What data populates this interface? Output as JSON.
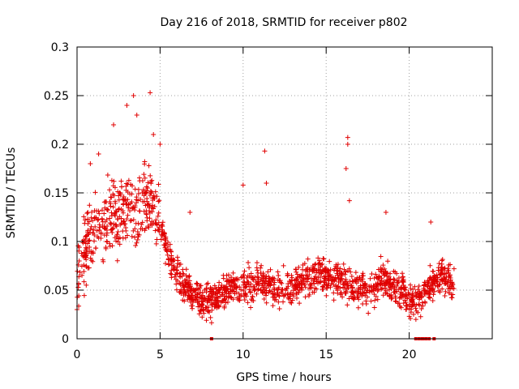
{
  "chart_data": {
    "type": "scatter",
    "title": "Day 216 of 2018, SRMTID for receiver p802",
    "xlabel": "GPS time / hours",
    "ylabel": "SRMTID / TECUs",
    "xlim": [
      0,
      25
    ],
    "ylim": [
      0,
      0.3
    ],
    "x_ticks": [
      0,
      5,
      10,
      15,
      20
    ],
    "x_tick_labels": [
      "0",
      "5",
      "10",
      "15",
      "20"
    ],
    "y_ticks": [
      0,
      0.05,
      0.1,
      0.15,
      0.2,
      0.25,
      0.3
    ],
    "y_tick_labels": [
      "0",
      "0.05",
      "0.1",
      "0.15",
      "0.2",
      "0.25",
      "0.3"
    ],
    "grid": true,
    "marker": "plus",
    "color": "#e00000",
    "trend": [
      [
        0.0,
        0.06
      ],
      [
        0.5,
        0.09
      ],
      [
        1.0,
        0.11
      ],
      [
        1.5,
        0.12
      ],
      [
        2.0,
        0.125
      ],
      [
        2.5,
        0.13
      ],
      [
        3.0,
        0.135
      ],
      [
        3.5,
        0.135
      ],
      [
        4.0,
        0.14
      ],
      [
        4.5,
        0.14
      ],
      [
        5.0,
        0.12
      ],
      [
        5.5,
        0.085
      ],
      [
        6.0,
        0.065
      ],
      [
        6.5,
        0.055
      ],
      [
        7.0,
        0.045
      ],
      [
        7.5,
        0.04
      ],
      [
        8.0,
        0.04
      ],
      [
        8.5,
        0.045
      ],
      [
        9.0,
        0.05
      ],
      [
        9.5,
        0.055
      ],
      [
        10.0,
        0.055
      ],
      [
        10.5,
        0.055
      ],
      [
        11.0,
        0.06
      ],
      [
        11.5,
        0.055
      ],
      [
        12.0,
        0.05
      ],
      [
        12.5,
        0.05
      ],
      [
        13.0,
        0.055
      ],
      [
        13.5,
        0.06
      ],
      [
        14.0,
        0.065
      ],
      [
        14.5,
        0.065
      ],
      [
        15.0,
        0.065
      ],
      [
        15.5,
        0.06
      ],
      [
        16.0,
        0.06
      ],
      [
        16.5,
        0.055
      ],
      [
        17.0,
        0.05
      ],
      [
        17.5,
        0.05
      ],
      [
        18.0,
        0.055
      ],
      [
        18.5,
        0.06
      ],
      [
        19.0,
        0.055
      ],
      [
        19.5,
        0.05
      ],
      [
        20.0,
        0.04
      ],
      [
        20.5,
        0.04
      ],
      [
        21.0,
        0.045
      ],
      [
        21.5,
        0.06
      ],
      [
        22.0,
        0.065
      ],
      [
        22.7,
        0.06
      ]
    ],
    "notable_points": [
      [
        0.0,
        0.03
      ],
      [
        0.8,
        0.18
      ],
      [
        1.3,
        0.19
      ],
      [
        2.2,
        0.22
      ],
      [
        3.0,
        0.24
      ],
      [
        3.4,
        0.25
      ],
      [
        3.6,
        0.23
      ],
      [
        4.4,
        0.253
      ],
      [
        4.6,
        0.21
      ],
      [
        5.0,
        0.2
      ],
      [
        10.0,
        0.158
      ],
      [
        11.3,
        0.193
      ],
      [
        11.4,
        0.16
      ],
      [
        16.3,
        0.207
      ],
      [
        16.3,
        0.2
      ],
      [
        16.2,
        0.175
      ],
      [
        16.4,
        0.142
      ],
      [
        18.6,
        0.13
      ],
      [
        21.3,
        0.12
      ],
      [
        6.8,
        0.13
      ]
    ],
    "zero_points_x": [
      8.1,
      20.4,
      20.6,
      20.8,
      21.0,
      21.2,
      21.5
    ]
  }
}
